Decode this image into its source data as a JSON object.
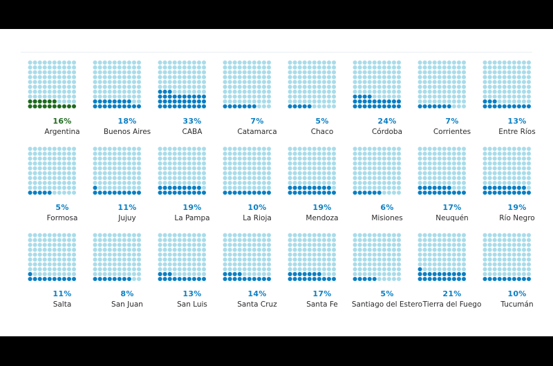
{
  "colors": {
    "empty_dot": "#a9dcea",
    "filled_dot": "#0a7fc3",
    "highlight_dot": "#1f6b1f",
    "pct_text": "#0a7fc3",
    "highlight_pct_text": "#1f6b1f"
  },
  "chart_data": {
    "type": "waffle",
    "grid": "10x10 dots per region, filled dots = percentage",
    "title": "",
    "regions": [
      {
        "name": "Argentina",
        "pct_label": "16%",
        "value": 16,
        "highlight": true
      },
      {
        "name": "Buenos Aires",
        "pct_label": "18%",
        "value": 18
      },
      {
        "name": "CABA",
        "pct_label": "33%",
        "value": 33
      },
      {
        "name": "Catamarca",
        "pct_label": "7%",
        "value": 7
      },
      {
        "name": "Chaco",
        "pct_label": "5%",
        "value": 5
      },
      {
        "name": "Córdoba",
        "pct_label": "24%",
        "value": 24
      },
      {
        "name": "Corrientes",
        "pct_label": "7%",
        "value": 7
      },
      {
        "name": "Entre Ríos",
        "pct_label": "13%",
        "value": 13
      },
      {
        "name": "Formosa",
        "pct_label": "5%",
        "value": 5
      },
      {
        "name": "Jujuy",
        "pct_label": "11%",
        "value": 11
      },
      {
        "name": "La Pampa",
        "pct_label": "19%",
        "value": 19
      },
      {
        "name": "La Rioja",
        "pct_label": "10%",
        "value": 10
      },
      {
        "name": "Mendoza",
        "pct_label": "19%",
        "value": 19
      },
      {
        "name": "Misiones",
        "pct_label": "6%",
        "value": 6
      },
      {
        "name": "Neuquén",
        "pct_label": "17%",
        "value": 17
      },
      {
        "name": "Río Negro",
        "pct_label": "19%",
        "value": 19
      },
      {
        "name": "Salta",
        "pct_label": "11%",
        "value": 11
      },
      {
        "name": "San Juan",
        "pct_label": "8%",
        "value": 8
      },
      {
        "name": "San Luis",
        "pct_label": "13%",
        "value": 13
      },
      {
        "name": "Santa Cruz",
        "pct_label": "14%",
        "value": 14
      },
      {
        "name": "Santa Fe",
        "pct_label": "17%",
        "value": 17
      },
      {
        "name": "Santiago del Estero",
        "pct_label": "5%",
        "value": 5
      },
      {
        "name": "Tierra del Fuego",
        "pct_label": "21%",
        "value": 21
      },
      {
        "name": "Tucumán",
        "pct_label": "10%",
        "value": 10
      }
    ]
  }
}
